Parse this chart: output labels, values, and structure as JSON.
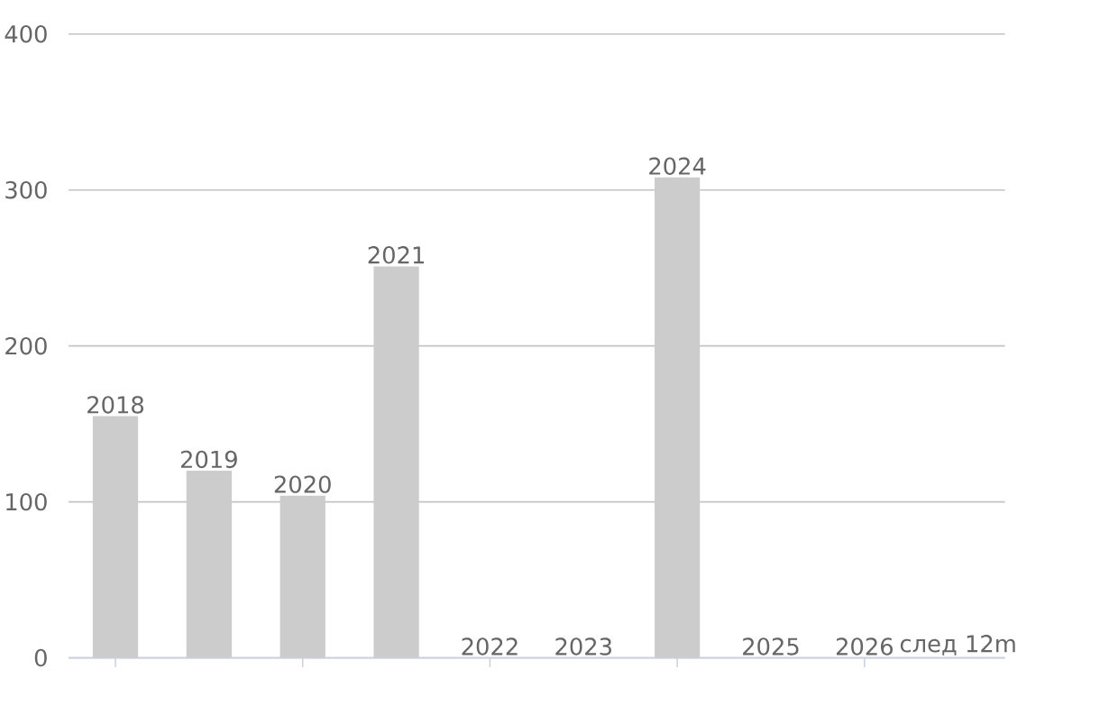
{
  "chart_data": {
    "type": "bar",
    "categories": [
      "2018",
      "2019",
      "2020",
      "2021",
      "2022",
      "2023",
      "2024",
      "2025",
      "2026",
      "след 12m"
    ],
    "values": [
      155,
      120,
      104,
      251,
      0,
      0,
      308,
      0,
      0,
      0
    ],
    "color": "#cccccc",
    "ylim": [
      0,
      400
    ],
    "yticks": [
      0,
      100,
      200,
      300,
      400
    ],
    "grid": "y",
    "tick_labels": "y"
  }
}
